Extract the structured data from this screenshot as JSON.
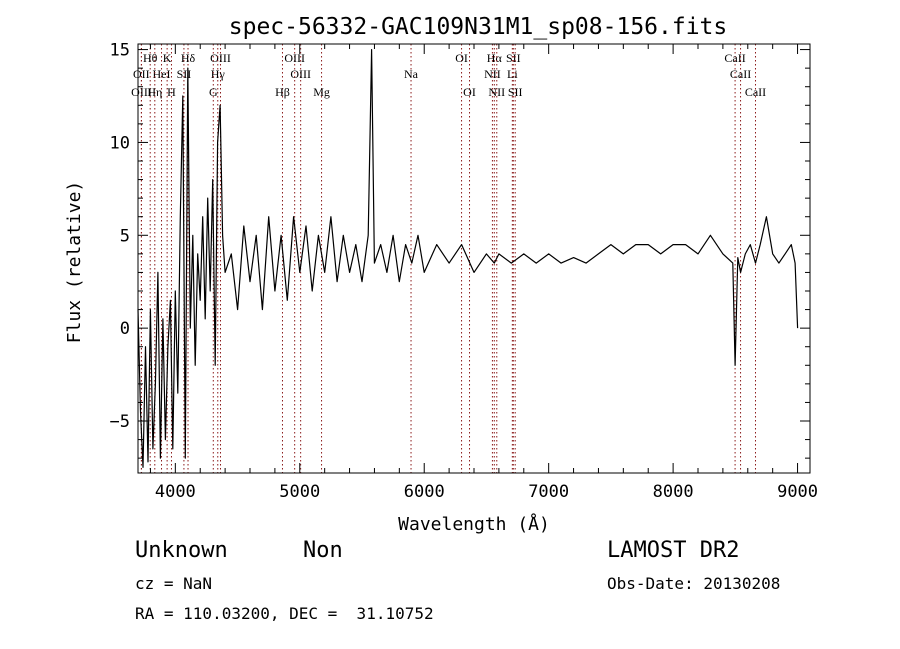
{
  "chart_data": {
    "type": "line",
    "title": "spec-56332-GAC109N31M1_sp08-156.fits",
    "xlabel": "Wavelength (Å)",
    "ylabel": "Flux (relative)",
    "xlim": [
      3700,
      9100
    ],
    "ylim": [
      -7.8,
      15.3
    ],
    "xticks": [
      4000,
      5000,
      6000,
      7000,
      8000,
      9000
    ],
    "yticks": [
      -5,
      0,
      5,
      10,
      15
    ],
    "grid": false,
    "colors": {
      "line": "#000000",
      "markers": "#8b1a1a"
    },
    "series": [
      {
        "x": [
          3700,
          3720,
          3740,
          3760,
          3780,
          3800,
          3820,
          3840,
          3860,
          3880,
          3900,
          3920,
          3940,
          3960,
          3980,
          4000,
          4020,
          4040,
          4060,
          4080,
          4100,
          4120,
          4140,
          4160,
          4180,
          4200,
          4220,
          4240,
          4260,
          4280,
          4300,
          4320,
          4340,
          4360,
          4380,
          4400,
          4450,
          4500,
          4550,
          4600,
          4650,
          4700,
          4750,
          4800,
          4850,
          4900,
          4950,
          5000,
          5050,
          5100,
          5150,
          5200,
          5250,
          5300,
          5350,
          5400,
          5450,
          5500,
          5550,
          5577,
          5600,
          5650,
          5700,
          5750,
          5800,
          5850,
          5900,
          5950,
          6000,
          6100,
          6200,
          6300,
          6400,
          6500,
          6563,
          6600,
          6700,
          6800,
          6900,
          7000,
          7100,
          7200,
          7300,
          7400,
          7500,
          7600,
          7700,
          7800,
          7900,
          8000,
          8100,
          8200,
          8300,
          8400,
          8480,
          8498,
          8520,
          8542,
          8580,
          8620,
          8662,
          8700,
          8750,
          8800,
          8850,
          8900,
          8950,
          8980,
          9000
        ],
        "y": [
          1.0,
          -4.5,
          -7.5,
          -1.0,
          -7.2,
          1.0,
          -6.5,
          -3.0,
          3.0,
          -7.0,
          0.5,
          -6.0,
          -1.0,
          1.5,
          -6.5,
          2.0,
          -3.5,
          6.0,
          12.5,
          -7.0,
          14.0,
          0.0,
          5.0,
          -2.0,
          4.0,
          1.5,
          6.0,
          0.5,
          7.0,
          2.0,
          8.0,
          -2.0,
          10.0,
          12.0,
          5.0,
          3.0,
          4.0,
          1.0,
          5.5,
          2.5,
          5.0,
          1.0,
          6.0,
          2.0,
          5.0,
          1.5,
          6.0,
          3.0,
          5.5,
          2.0,
          5.0,
          3.0,
          6.0,
          2.5,
          5.0,
          3.0,
          4.5,
          2.5,
          5.0,
          15.0,
          3.5,
          4.5,
          3.0,
          5.0,
          2.5,
          4.5,
          3.5,
          5.0,
          3.0,
          4.5,
          3.5,
          4.5,
          3.0,
          4.0,
          3.5,
          4.0,
          3.5,
          4.0,
          3.5,
          4.0,
          3.5,
          3.8,
          3.5,
          4.0,
          4.5,
          4.0,
          4.5,
          4.5,
          4.0,
          4.5,
          4.5,
          4.0,
          5.0,
          4.0,
          3.5,
          -2.0,
          3.8,
          3.0,
          4.0,
          4.5,
          3.5,
          4.5,
          6.0,
          4.0,
          3.5,
          4.0,
          4.5,
          3.5,
          0.0
        ]
      }
    ],
    "line_markers": [
      {
        "label": "Hθ",
        "x": 3798,
        "row": 1
      },
      {
        "label": "OII",
        "x": 3727,
        "row": 2
      },
      {
        "label": "OIII",
        "x": 3728,
        "row": 3
      },
      {
        "label": "K",
        "x": 3934,
        "row": 1
      },
      {
        "label": "HeI",
        "x": 3889,
        "row": 2
      },
      {
        "label": "Hη",
        "x": 3835,
        "row": 3
      },
      {
        "label": "SII",
        "x": 4069,
        "row": 2
      },
      {
        "label": "H",
        "x": 3969,
        "row": 3
      },
      {
        "label": "Hδ",
        "x": 4102,
        "row": 1
      },
      {
        "label": "OIII",
        "x": 4363,
        "row": 1
      },
      {
        "label": "Hγ",
        "x": 4341,
        "row": 2
      },
      {
        "label": "G",
        "x": 4305,
        "row": 3
      },
      {
        "label": "Hβ",
        "x": 4861,
        "row": 3
      },
      {
        "label": "OIII",
        "x": 4959,
        "row": 1
      },
      {
        "label": "OIII",
        "x": 5007,
        "row": 2
      },
      {
        "label": "Mg",
        "x": 5175,
        "row": 3
      },
      {
        "label": "Na",
        "x": 5894,
        "row": 2
      },
      {
        "label": "OI",
        "x": 6300,
        "row": 1
      },
      {
        "label": "OI",
        "x": 6364,
        "row": 3
      },
      {
        "label": "Hα",
        "x": 6563,
        "row": 1
      },
      {
        "label": "NII",
        "x": 6548,
        "row": 2
      },
      {
        "label": "NII",
        "x": 6583,
        "row": 3
      },
      {
        "label": "SII",
        "x": 6716,
        "row": 1
      },
      {
        "label": "Li",
        "x": 6708,
        "row": 2
      },
      {
        "label": "SII",
        "x": 6731,
        "row": 3
      },
      {
        "label": "CaII",
        "x": 8498,
        "row": 1
      },
      {
        "label": "CaII",
        "x": 8542,
        "row": 2
      },
      {
        "label": "CaII",
        "x": 8662,
        "row": 3
      }
    ]
  },
  "info": {
    "class": "Unknown",
    "subclass": "Non",
    "cz": "cz = NaN",
    "coords": "RA = 110.03200, DEC =  31.10752",
    "survey": "LAMOST DR2",
    "obs_date": "Obs-Date: 20130208"
  }
}
